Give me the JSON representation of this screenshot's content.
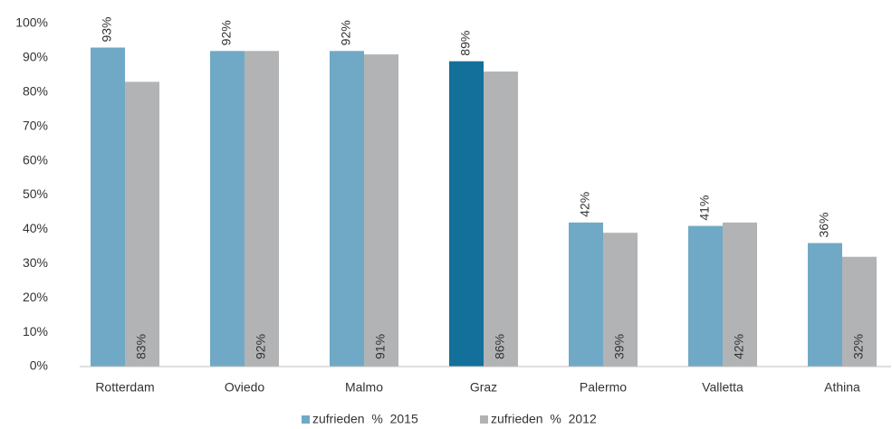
{
  "chart_data": {
    "type": "bar",
    "categories": [
      "Rotterdam",
      "Oviedo",
      "Malmo",
      "Graz",
      "Palermo",
      "Valletta",
      "Athina"
    ],
    "series": [
      {
        "name": "zufrieden  %  2015",
        "color": "#70a9c6",
        "colors": [
          "#70a9c6",
          "#70a9c6",
          "#70a9c6",
          "#13709a",
          "#70a9c6",
          "#70a9c6",
          "#70a9c6"
        ],
        "values": [
          93,
          92,
          92,
          89,
          42,
          41,
          36
        ],
        "value_labels": [
          "93%",
          "92%",
          "92%",
          "89%",
          "42%",
          "41%",
          "36%"
        ]
      },
      {
        "name": "zufrieden  %  2012",
        "color": "#b1b3b4",
        "values": [
          83,
          92,
          91,
          86,
          39,
          42,
          32
        ],
        "value_labels": [
          "83%",
          "92%",
          "91%",
          "86%",
          "39%",
          "42%",
          "32%"
        ]
      }
    ],
    "ylim": [
      0,
      100
    ],
    "yticks": [
      {
        "value": 0,
        "label": "0%"
      },
      {
        "value": 10,
        "label": "10%"
      },
      {
        "value": 20,
        "label": "20%"
      },
      {
        "value": 30,
        "label": "30%"
      },
      {
        "value": 40,
        "label": "40%"
      },
      {
        "value": 50,
        "label": "50%"
      },
      {
        "value": 60,
        "label": "60%"
      },
      {
        "value": 70,
        "label": "70%"
      },
      {
        "value": 80,
        "label": "80%"
      },
      {
        "value": 90,
        "label": "90%"
      },
      {
        "value": 100,
        "label": "100%"
      }
    ],
    "grid": false
  }
}
